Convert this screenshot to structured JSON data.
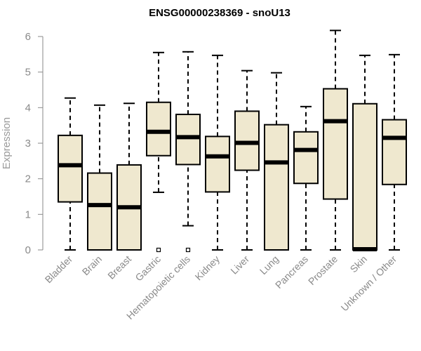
{
  "chart_data": {
    "type": "boxplot",
    "title": "ENSG00000238369 - snoU13",
    "xlabel": "",
    "ylabel": "Expression",
    "ylim": [
      0,
      6
    ],
    "yticks": [
      0,
      1,
      2,
      3,
      4,
      5,
      6
    ],
    "grid": false,
    "legend": "none",
    "box_fill": "#efe8cf",
    "box_stroke": "#000000",
    "categories": [
      "Bladder",
      "Brain",
      "Breast",
      "Gastric",
      "Hematopoietic cells",
      "Kidney",
      "Liver",
      "Lung",
      "Pancreas",
      "Prostate",
      "Skin",
      "Unknown / Other"
    ],
    "boxes": [
      {
        "category": "Bladder",
        "whisker_low": 0.0,
        "q1": 1.35,
        "median": 2.38,
        "q3": 3.22,
        "whisker_high": 4.27,
        "outliers": []
      },
      {
        "category": "Brain",
        "whisker_low": 0.0,
        "q1": 0.0,
        "median": 1.26,
        "q3": 2.16,
        "whisker_high": 4.07,
        "outliers": []
      },
      {
        "category": "Breast",
        "whisker_low": 0.0,
        "q1": 0.0,
        "median": 1.2,
        "q3": 2.39,
        "whisker_high": 4.12,
        "outliers": []
      },
      {
        "category": "Gastric",
        "whisker_low": 1.62,
        "q1": 2.65,
        "median": 3.32,
        "q3": 4.15,
        "whisker_high": 5.55,
        "outliers": [
          0.0
        ]
      },
      {
        "category": "Hematopoietic cells",
        "whisker_low": 0.68,
        "q1": 2.4,
        "median": 3.17,
        "q3": 3.81,
        "whisker_high": 5.57,
        "outliers": [
          0.0
        ]
      },
      {
        "category": "Kidney",
        "whisker_low": 0.0,
        "q1": 1.63,
        "median": 2.63,
        "q3": 3.19,
        "whisker_high": 5.47,
        "outliers": []
      },
      {
        "category": "Liver",
        "whisker_low": 0.0,
        "q1": 2.24,
        "median": 3.01,
        "q3": 3.9,
        "whisker_high": 5.04,
        "outliers": []
      },
      {
        "category": "Lung",
        "whisker_low": 0.0,
        "q1": 0.0,
        "median": 2.46,
        "q3": 3.52,
        "whisker_high": 4.98,
        "outliers": []
      },
      {
        "category": "Pancreas",
        "whisker_low": 0.0,
        "q1": 1.87,
        "median": 2.81,
        "q3": 3.32,
        "whisker_high": 4.03,
        "outliers": []
      },
      {
        "category": "Prostate",
        "whisker_low": 0.0,
        "q1": 1.43,
        "median": 3.62,
        "q3": 4.53,
        "whisker_high": 6.17,
        "outliers": []
      },
      {
        "category": "Skin",
        "whisker_low": 0.0,
        "q1": 0.0,
        "median": 0.02,
        "q3": 4.11,
        "whisker_high": 5.47,
        "outliers": []
      },
      {
        "category": "Unknown / Other",
        "whisker_low": 0.0,
        "q1": 1.84,
        "median": 3.15,
        "q3": 3.66,
        "whisker_high": 5.49,
        "outliers": []
      }
    ]
  }
}
